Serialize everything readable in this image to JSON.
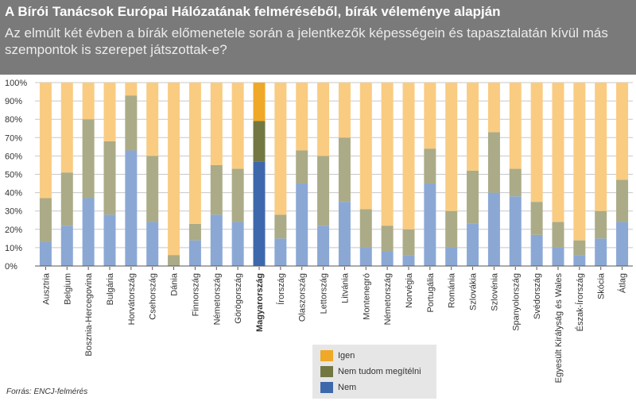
{
  "title": "A Bírói Tanácsok Európai Hálózatának felméréséből, bírák véleménye alapján",
  "subtitle": "Az elmúlt két évben a bírák előmenetele során a jelentkezők képességein és tapasztalatán kívül más szempontok is szerepet játszottak-e?",
  "source": "Forrás: ENCJ-felmérés",
  "colors": {
    "header_bg": "#7a7a7a",
    "igen": "#f9cc82",
    "nem_tudom": "#abab87",
    "nem": "#8ba8d5",
    "igen_highlight": "#f0a828",
    "nem_tudom_highlight": "#737843",
    "nem_highlight": "#3d69ac",
    "grid": "#c8c8c8"
  },
  "legend": [
    {
      "label": "Igen",
      "color_key": "igen_highlight"
    },
    {
      "label": "Nem tudom megítélni",
      "color_key": "nem_tudom_highlight"
    },
    {
      "label": "Nem",
      "color_key": "nem_highlight"
    }
  ],
  "chart_data": {
    "type": "bar",
    "stacked": true,
    "ylim": [
      0,
      100
    ],
    "yticks": [
      "0%",
      "10%",
      "20%",
      "30%",
      "40%",
      "50%",
      "60%",
      "70%",
      "80%",
      "90%",
      "100%"
    ],
    "highlight": "Magyarország",
    "categories": [
      "Ausztria",
      "Belgium",
      "Bosznia-Hercegovina",
      "Bulgária",
      "Horvátország",
      "Csehország",
      "Dánia",
      "Finnország",
      "Németország",
      "Görögország",
      "Magyarország",
      "Írország",
      "Olaszország",
      "Lettország",
      "Litvánia",
      "Montenegró",
      "Németország",
      "Norvégia",
      "Portugália",
      "Románia",
      "Szlovákia",
      "Szlovénia",
      "Spanyolország",
      "Svédország",
      "Egyesült Királyság és Wales",
      "Észak-Írország",
      "Skócia",
      "Átlag"
    ],
    "series": [
      {
        "name": "Nem",
        "values": [
          13,
          22,
          37,
          28,
          63,
          24,
          0,
          14,
          28,
          24,
          57,
          15,
          45,
          22,
          35,
          10,
          8,
          6,
          45,
          10,
          23,
          40,
          38,
          17,
          10,
          6,
          15,
          24
        ]
      },
      {
        "name": "Nem tudom megítélni",
        "values": [
          24,
          29,
          43,
          40,
          30,
          36,
          6,
          9,
          27,
          29,
          22,
          13,
          18,
          38,
          35,
          21,
          14,
          14,
          19,
          20,
          29,
          33,
          15,
          18,
          14,
          8,
          15,
          23
        ]
      },
      {
        "name": "Igen",
        "values": [
          63,
          49,
          20,
          32,
          7,
          40,
          94,
          77,
          45,
          47,
          21,
          72,
          37,
          40,
          30,
          69,
          78,
          80,
          36,
          70,
          48,
          27,
          47,
          65,
          76,
          86,
          70,
          53
        ]
      }
    ]
  }
}
